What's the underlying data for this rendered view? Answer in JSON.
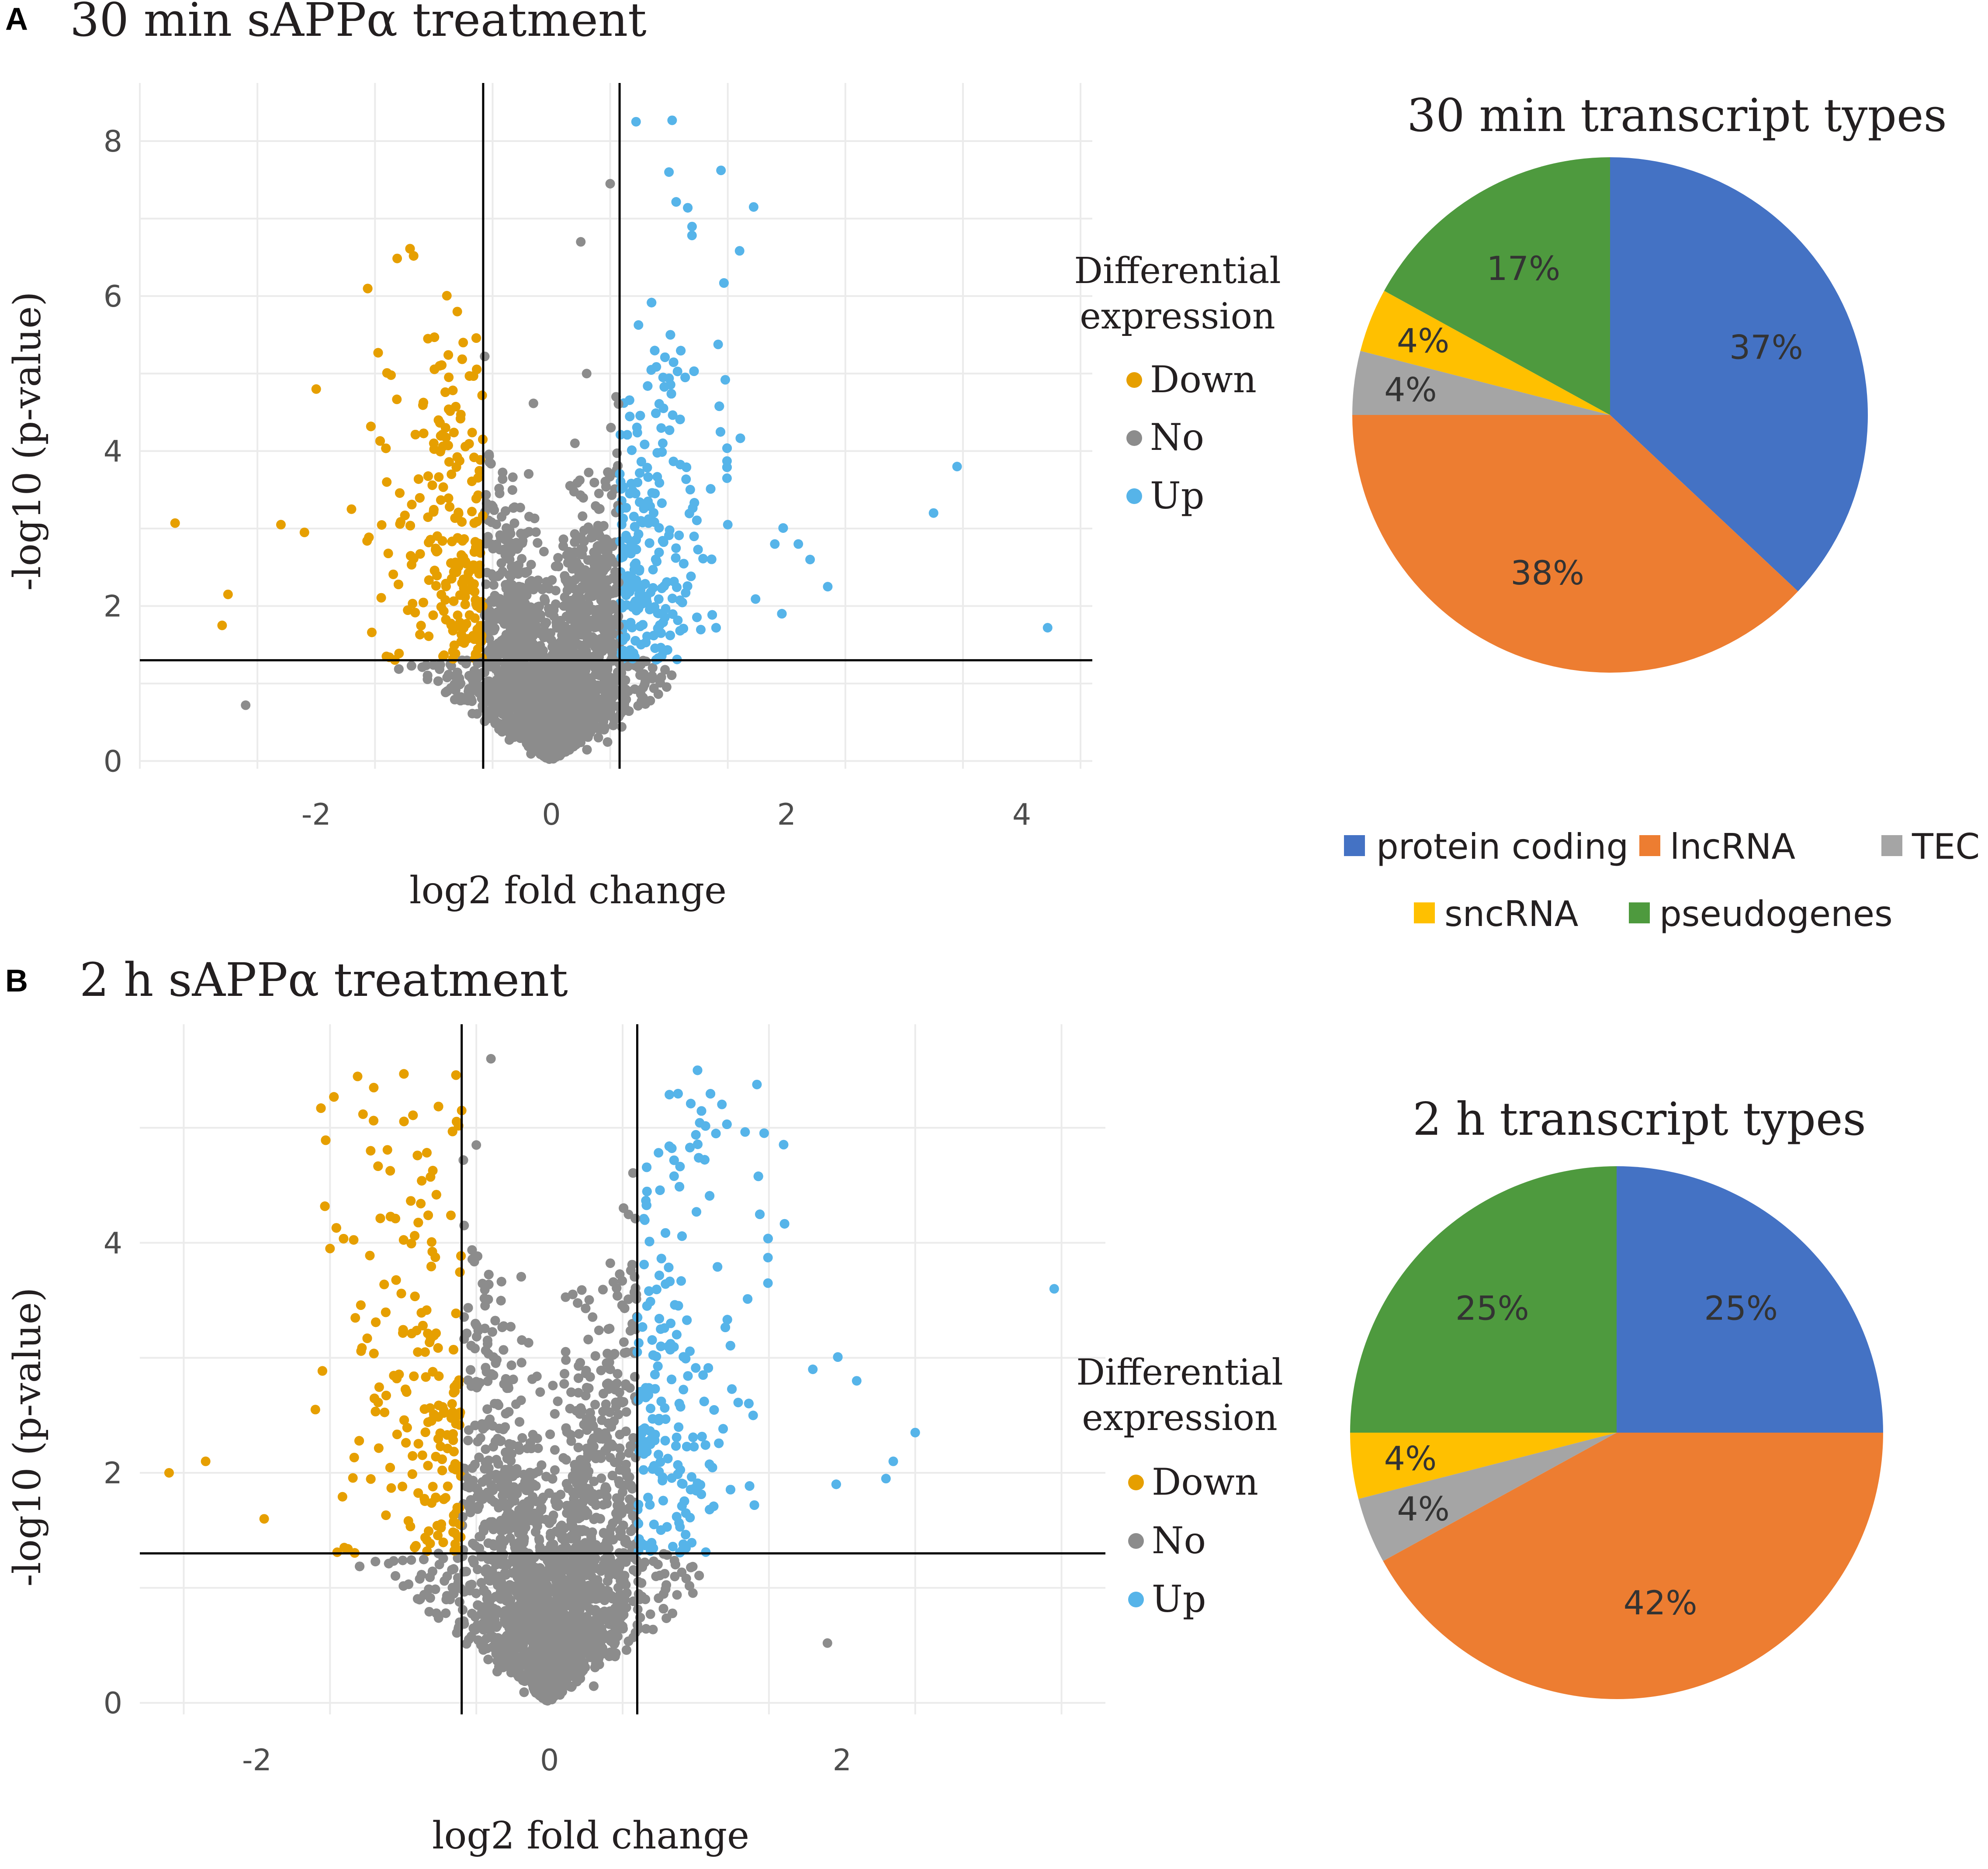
{
  "panels": {
    "a": {
      "letter": "A",
      "title": "30 min sAPPα treatment"
    },
    "b": {
      "letter": "B",
      "title": "2 h sAPPα treatment"
    }
  },
  "legend": {
    "title_line1": "Differential",
    "title_line2": "expression",
    "down": "Down",
    "no": "No",
    "up": "Up"
  },
  "pie_legend": {
    "items": [
      "protein coding",
      "lncRNA",
      "TEC",
      "sncRNA",
      "pseudogenes"
    ]
  },
  "colors": {
    "down": "#e69f00",
    "no": "#8c8c8c",
    "up": "#56b4e9",
    "protein_coding": "#4472c4",
    "lncRNA": "#ed7d31",
    "TEC": "#a5a5a5",
    "sncRNA": "#ffc000",
    "pseudogenes": "#4e9a3e"
  },
  "chart_data": [
    {
      "type": "scatter",
      "id": "volcano_a",
      "title": "30 min sAPPα treatment",
      "xlabel": "log2 fold change",
      "ylabel": "-log10 (p-value)",
      "xlim": [
        -3.5,
        4.6
      ],
      "ylim": [
        -0.1,
        8.75
      ],
      "xticks": [
        -2,
        0,
        2,
        4
      ],
      "yticks": [
        0,
        2,
        4,
        6,
        8
      ],
      "thresholds": {
        "x": [
          -0.58,
          0.58
        ],
        "y": 1.3
      },
      "down_points": [
        [
          -3.2,
          3.07
        ],
        [
          -2.75,
          2.15
        ],
        [
          -2.8,
          1.75
        ],
        [
          -2.3,
          3.05
        ],
        [
          -2.0,
          4.8
        ],
        [
          -2.1,
          2.95
        ],
        [
          -1.7,
          3.25
        ],
        [
          -1.4,
          3.6
        ],
        [
          -1.0,
          4.1
        ],
        [
          -0.9,
          4.3
        ],
        [
          -0.8,
          5.8
        ],
        [
          -0.75,
          5.4
        ],
        [
          -0.95,
          5.1
        ],
        [
          -1.05,
          5.45
        ],
        [
          -0.85,
          3.7
        ]
      ],
      "no_points": [
        [
          -2.6,
          0.72
        ],
        [
          0.25,
          6.7
        ],
        [
          0.5,
          7.45
        ],
        [
          0.3,
          5.0
        ],
        [
          0.55,
          4.7
        ],
        [
          0.2,
          4.1
        ]
      ],
      "up_points": [
        [
          0.72,
          8.25
        ],
        [
          1.0,
          7.6
        ],
        [
          1.72,
          7.15
        ],
        [
          0.85,
          5.05
        ],
        [
          0.95,
          4.95
        ],
        [
          3.45,
          3.8
        ],
        [
          3.25,
          3.2
        ],
        [
          4.22,
          1.72
        ],
        [
          1.5,
          3.05
        ],
        [
          1.9,
          2.8
        ],
        [
          2.1,
          2.8
        ],
        [
          2.2,
          2.6
        ],
        [
          2.35,
          2.25
        ]
      ],
      "category_counts_note": "remaining dense points drawn procedurally"
    },
    {
      "type": "pie",
      "id": "pie_a",
      "title": "30 min transcript types",
      "categories": [
        "protein coding",
        "lncRNA",
        "TEC",
        "sncRNA",
        "pseudogenes"
      ],
      "values": [
        37,
        38,
        4,
        4,
        17
      ],
      "labels": [
        "37%",
        "38%",
        "4%",
        "4%",
        "17%"
      ]
    },
    {
      "type": "scatter",
      "id": "volcano_b",
      "title": "2 h sAPPα treatment",
      "xlabel": "log2 fold change",
      "ylabel": "-log10 (p-value)",
      "xlim": [
        -2.8,
        3.8
      ],
      "ylim": [
        -0.1,
        5.9
      ],
      "xticks": [
        -2,
        0,
        2
      ],
      "yticks": [
        0,
        2,
        4
      ],
      "thresholds": {
        "x": [
          -0.6,
          0.6
        ],
        "y": 1.3
      },
      "down_points": [
        [
          -2.6,
          2.0
        ],
        [
          -2.35,
          2.1
        ],
        [
          -1.5,
          3.95
        ],
        [
          -0.6,
          5.15
        ],
        [
          -0.9,
          3.05
        ],
        [
          -0.85,
          3.05
        ],
        [
          -1.6,
          2.55
        ],
        [
          -1.95,
          1.6
        ]
      ],
      "no_points": [
        [
          -0.4,
          5.6
        ],
        [
          -0.5,
          4.85
        ],
        [
          1.9,
          0.52
        ]
      ],
      "up_points": [
        [
          3.45,
          3.6
        ],
        [
          0.6,
          3.05
        ],
        [
          1.05,
          2.85
        ],
        [
          1.8,
          2.9
        ],
        [
          2.1,
          2.8
        ],
        [
          2.5,
          2.35
        ],
        [
          2.35,
          2.1
        ],
        [
          2.3,
          1.95
        ]
      ],
      "category_counts_note": "remaining dense points drawn procedurally"
    },
    {
      "type": "pie",
      "id": "pie_b",
      "title": "2 h transcript types",
      "categories": [
        "protein coding",
        "lncRNA",
        "TEC",
        "sncRNA",
        "pseudogenes"
      ],
      "values": [
        25,
        42,
        4,
        4,
        25
      ],
      "labels": [
        "25%",
        "42%",
        "4%",
        "4%",
        "25%"
      ]
    }
  ]
}
